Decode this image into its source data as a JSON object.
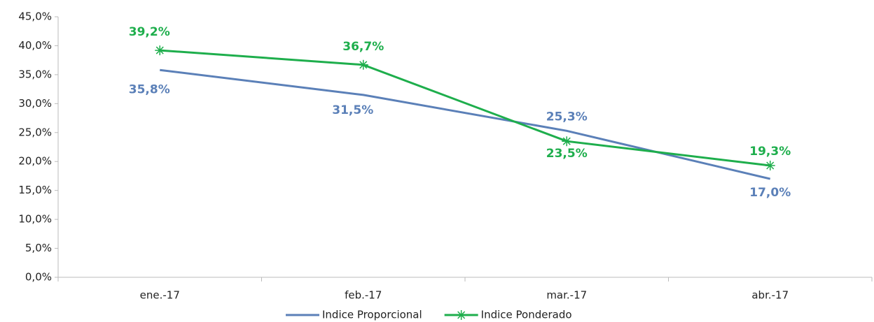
{
  "chart_data": {
    "type": "line",
    "categories": [
      "ene.-17",
      "feb.-17",
      "mar.-17",
      "abr.-17"
    ],
    "series": [
      {
        "name": "Indice Proporcional",
        "color": "#5b80b8",
        "values": [
          35.8,
          31.5,
          25.3,
          17.0
        ],
        "value_labels": [
          "35,8%",
          "31,5%",
          "25,3%",
          "17,0%"
        ],
        "marker": "none"
      },
      {
        "name": "Indice Ponderado",
        "color": "#1eae4c",
        "values": [
          39.2,
          36.7,
          23.5,
          19.3
        ],
        "value_labels": [
          "39,2%",
          "36,7%",
          "23,5%",
          "19,3%"
        ],
        "marker": "star"
      }
    ],
    "ylim": [
      0,
      45
    ],
    "yticks": [
      {
        "value": 0,
        "label": "0,0%"
      },
      {
        "value": 5,
        "label": "5,0%"
      },
      {
        "value": 10,
        "label": "10,0%"
      },
      {
        "value": 15,
        "label": "15,0%"
      },
      {
        "value": 20,
        "label": "20,0%"
      },
      {
        "value": 25,
        "label": "25,0%"
      },
      {
        "value": 30,
        "label": "30,0%"
      },
      {
        "value": 35,
        "label": "35,0%"
      },
      {
        "value": 40,
        "label": "40,0%"
      },
      {
        "value": 45,
        "label": "45,0%"
      }
    ],
    "grid": false,
    "legend": "bottom"
  }
}
